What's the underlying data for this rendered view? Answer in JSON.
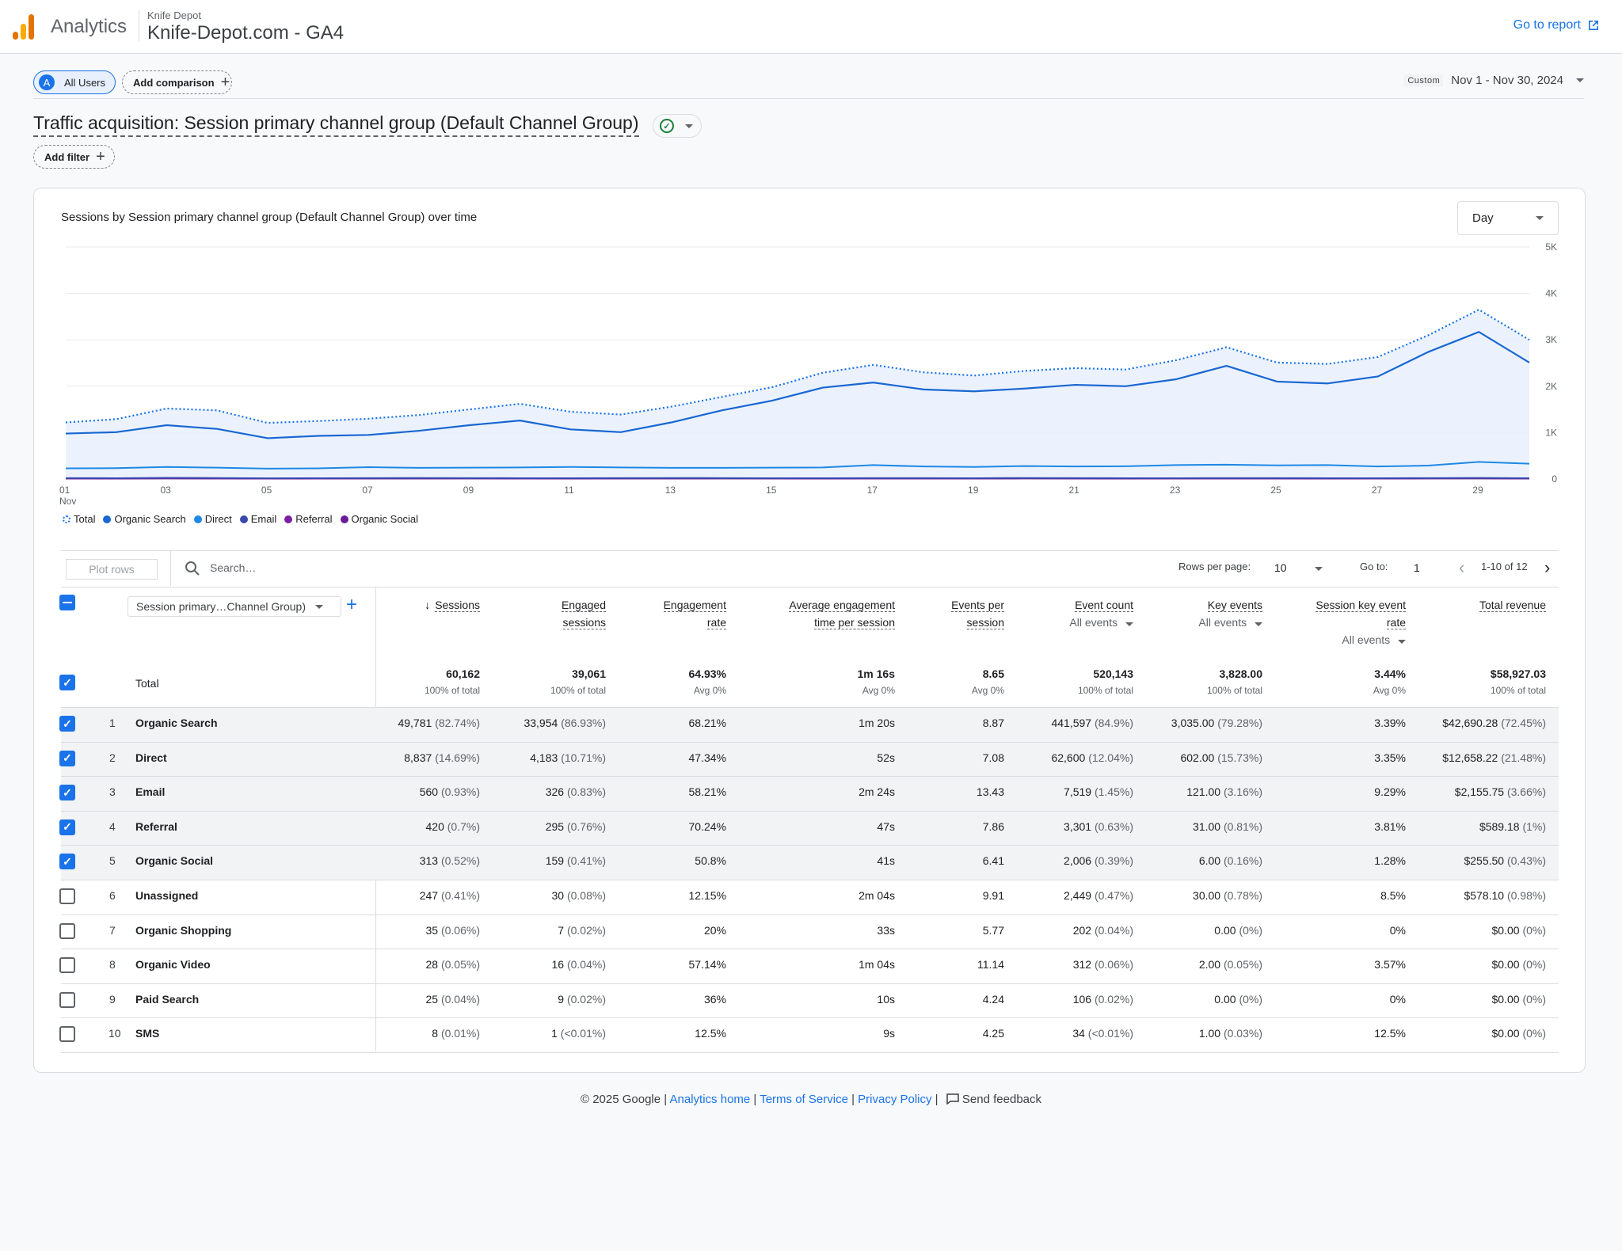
{
  "header": {
    "app_name": "Analytics",
    "account": "Knife Depot",
    "property": "Knife-Depot.com - GA4",
    "go_to_report": "Go to report"
  },
  "controls": {
    "segment_avatar": "A",
    "segment_label": "All Users",
    "add_comparison": "Add comparison",
    "date_tag": "Custom",
    "date_range": "Nov 1 - Nov 30, 2024",
    "report_title": "Traffic acquisition: Session primary channel group (Default Channel Group)",
    "add_filter": "Add filter"
  },
  "chart_panel": {
    "title": "Sessions by Session primary channel group (Default Channel Group) over time",
    "interval": "Day"
  },
  "chart_data": {
    "type": "line",
    "title": "Sessions by Session primary channel group (Default Channel Group) over time",
    "x": [
      1,
      2,
      3,
      4,
      5,
      6,
      7,
      8,
      9,
      10,
      11,
      12,
      13,
      14,
      15,
      16,
      17,
      18,
      19,
      20,
      21,
      22,
      23,
      24,
      25,
      26,
      27,
      28,
      29,
      30
    ],
    "x_tick_labels": [
      "01",
      "03",
      "05",
      "07",
      "09",
      "11",
      "13",
      "15",
      "17",
      "19",
      "21",
      "23",
      "25",
      "27",
      "29"
    ],
    "x_tick_values": [
      1,
      3,
      5,
      7,
      9,
      11,
      13,
      15,
      17,
      19,
      21,
      23,
      25,
      27,
      29
    ],
    "x_month_label": "Nov",
    "y_tick_labels": [
      "0",
      "1K",
      "2K",
      "3K",
      "4K",
      "5K"
    ],
    "ylim": [
      0,
      5000
    ],
    "grid": true,
    "legend_position": "bottom-left",
    "series": [
      {
        "name": "Total",
        "color": "#1a73e8",
        "style": "dotted",
        "values": [
          1220,
          1290,
          1520,
          1480,
          1210,
          1250,
          1300,
          1380,
          1500,
          1620,
          1450,
          1390,
          1560,
          1770,
          1980,
          2290,
          2460,
          2300,
          2230,
          2330,
          2390,
          2360,
          2560,
          2840,
          2510,
          2480,
          2630,
          3100,
          3650,
          3000
        ]
      },
      {
        "name": "Organic Search",
        "color": "#1967d2",
        "style": "solid",
        "area": true,
        "values": [
          980,
          1010,
          1160,
          1080,
          880,
          930,
          950,
          1040,
          1160,
          1260,
          1070,
          1010,
          1220,
          1480,
          1690,
          1970,
          2080,
          1930,
          1890,
          1950,
          2030,
          2000,
          2150,
          2440,
          2100,
          2060,
          2210,
          2740,
          3170,
          2510
        ]
      },
      {
        "name": "Direct",
        "color": "#1e88e5",
        "style": "solid",
        "values": [
          230,
          235,
          260,
          245,
          225,
          230,
          255,
          240,
          245,
          250,
          260,
          250,
          240,
          240,
          245,
          250,
          300,
          270,
          260,
          280,
          270,
          275,
          300,
          310,
          295,
          300,
          270,
          290,
          370,
          330
        ]
      },
      {
        "name": "Email",
        "color": "#3949ab",
        "style": "solid",
        "values": [
          20,
          18,
          25,
          22,
          15,
          18,
          20,
          22,
          20,
          18,
          17,
          19,
          21,
          20,
          18,
          17,
          19,
          20,
          18,
          22,
          19,
          18,
          17,
          20,
          19,
          18,
          17,
          20,
          23,
          16
        ]
      },
      {
        "name": "Referral",
        "color": "#7b1fa2",
        "style": "solid",
        "values": [
          14,
          12,
          16,
          15,
          11,
          13,
          14,
          15,
          14,
          13,
          12,
          14,
          16,
          15,
          14,
          13,
          15,
          14,
          13,
          16,
          15,
          14,
          13,
          15,
          14,
          13,
          12,
          15,
          16,
          13
        ]
      },
      {
        "name": "Organic Social",
        "color": "#6a1b9a",
        "style": "solid",
        "values": [
          10,
          9,
          12,
          11,
          8,
          10,
          11,
          10,
          12,
          11,
          9,
          10,
          11,
          12,
          10,
          9,
          11,
          10,
          11,
          12,
          10,
          9,
          10,
          11,
          10,
          9,
          11,
          12,
          13,
          10
        ]
      }
    ]
  },
  "toolbar": {
    "plot_rows": "Plot rows",
    "search_placeholder": "Search…",
    "rows_per_page_label": "Rows per page:",
    "rows_per_page": "10",
    "goto_label": "Go to:",
    "goto_value": "1",
    "pagination": "1-10 of 12"
  },
  "table": {
    "dimension": "Session primary…Channel Group)",
    "total_label": "Total",
    "columns": [
      {
        "l1": "Sessions",
        "l2": "",
        "sub": "",
        "sort": true
      },
      {
        "l1": "Engaged",
        "l2": "sessions",
        "sub": ""
      },
      {
        "l1": "Engagement",
        "l2": "rate",
        "sub": ""
      },
      {
        "l1": "Average engagement",
        "l2": "time per session",
        "sub": ""
      },
      {
        "l1": "Events per",
        "l2": "session",
        "sub": ""
      },
      {
        "l1": "Event count",
        "l2": "",
        "sub": "All events"
      },
      {
        "l1": "Key events",
        "l2": "",
        "sub": "All events"
      },
      {
        "l1": "Session key event",
        "l2": "rate",
        "sub": "All events"
      },
      {
        "l1": "Total revenue",
        "l2": "",
        "sub": ""
      }
    ],
    "totals": [
      {
        "v": "60,162",
        "s": "100% of total"
      },
      {
        "v": "39,061",
        "s": "100% of total"
      },
      {
        "v": "64.93%",
        "s": "Avg 0%"
      },
      {
        "v": "1m 16s",
        "s": "Avg 0%"
      },
      {
        "v": "8.65",
        "s": "Avg 0%"
      },
      {
        "v": "520,143",
        "s": "100% of total"
      },
      {
        "v": "3,828.00",
        "s": "100% of total"
      },
      {
        "v": "3.44%",
        "s": "Avg 0%"
      },
      {
        "v": "$58,927.03",
        "s": "100% of total"
      }
    ],
    "rows": [
      {
        "rank": "1",
        "name": "Organic Search",
        "checked": true,
        "cells": [
          [
            "49,781",
            "(82.74%)"
          ],
          [
            "33,954",
            "(86.93%)"
          ],
          [
            "68.21%",
            ""
          ],
          [
            "1m 20s",
            ""
          ],
          [
            "8.87",
            ""
          ],
          [
            "441,597",
            "(84.9%)"
          ],
          [
            "3,035.00",
            "(79.28%)"
          ],
          [
            "3.39%",
            ""
          ],
          [
            "$42,690.28",
            "(72.45%)"
          ]
        ]
      },
      {
        "rank": "2",
        "name": "Direct",
        "checked": true,
        "cells": [
          [
            "8,837",
            "(14.69%)"
          ],
          [
            "4,183",
            "(10.71%)"
          ],
          [
            "47.34%",
            ""
          ],
          [
            "52s",
            ""
          ],
          [
            "7.08",
            ""
          ],
          [
            "62,600",
            "(12.04%)"
          ],
          [
            "602.00",
            "(15.73%)"
          ],
          [
            "3.35%",
            ""
          ],
          [
            "$12,658.22",
            "(21.48%)"
          ]
        ]
      },
      {
        "rank": "3",
        "name": "Email",
        "checked": true,
        "cells": [
          [
            "560",
            "(0.93%)"
          ],
          [
            "326",
            "(0.83%)"
          ],
          [
            "58.21%",
            ""
          ],
          [
            "2m 24s",
            ""
          ],
          [
            "13.43",
            ""
          ],
          [
            "7,519",
            "(1.45%)"
          ],
          [
            "121.00",
            "(3.16%)"
          ],
          [
            "9.29%",
            ""
          ],
          [
            "$2,155.75",
            "(3.66%)"
          ]
        ]
      },
      {
        "rank": "4",
        "name": "Referral",
        "checked": true,
        "cells": [
          [
            "420",
            "(0.7%)"
          ],
          [
            "295",
            "(0.76%)"
          ],
          [
            "70.24%",
            ""
          ],
          [
            "47s",
            ""
          ],
          [
            "7.86",
            ""
          ],
          [
            "3,301",
            "(0.63%)"
          ],
          [
            "31.00",
            "(0.81%)"
          ],
          [
            "3.81%",
            ""
          ],
          [
            "$589.18",
            "(1%)"
          ]
        ]
      },
      {
        "rank": "5",
        "name": "Organic Social",
        "checked": true,
        "cells": [
          [
            "313",
            "(0.52%)"
          ],
          [
            "159",
            "(0.41%)"
          ],
          [
            "50.8%",
            ""
          ],
          [
            "41s",
            ""
          ],
          [
            "6.41",
            ""
          ],
          [
            "2,006",
            "(0.39%)"
          ],
          [
            "6.00",
            "(0.16%)"
          ],
          [
            "1.28%",
            ""
          ],
          [
            "$255.50",
            "(0.43%)"
          ]
        ]
      },
      {
        "rank": "6",
        "name": "Unassigned",
        "checked": false,
        "cells": [
          [
            "247",
            "(0.41%)"
          ],
          [
            "30",
            "(0.08%)"
          ],
          [
            "12.15%",
            ""
          ],
          [
            "2m 04s",
            ""
          ],
          [
            "9.91",
            ""
          ],
          [
            "2,449",
            "(0.47%)"
          ],
          [
            "30.00",
            "(0.78%)"
          ],
          [
            "8.5%",
            ""
          ],
          [
            "$578.10",
            "(0.98%)"
          ]
        ]
      },
      {
        "rank": "7",
        "name": "Organic Shopping",
        "checked": false,
        "cells": [
          [
            "35",
            "(0.06%)"
          ],
          [
            "7",
            "(0.02%)"
          ],
          [
            "20%",
            ""
          ],
          [
            "33s",
            ""
          ],
          [
            "5.77",
            ""
          ],
          [
            "202",
            "(0.04%)"
          ],
          [
            "0.00",
            "(0%)"
          ],
          [
            "0%",
            ""
          ],
          [
            "$0.00",
            "(0%)"
          ]
        ]
      },
      {
        "rank": "8",
        "name": "Organic Video",
        "checked": false,
        "cells": [
          [
            "28",
            "(0.05%)"
          ],
          [
            "16",
            "(0.04%)"
          ],
          [
            "57.14%",
            ""
          ],
          [
            "1m 04s",
            ""
          ],
          [
            "11.14",
            ""
          ],
          [
            "312",
            "(0.06%)"
          ],
          [
            "2.00",
            "(0.05%)"
          ],
          [
            "3.57%",
            ""
          ],
          [
            "$0.00",
            "(0%)"
          ]
        ]
      },
      {
        "rank": "9",
        "name": "Paid Search",
        "checked": false,
        "cells": [
          [
            "25",
            "(0.04%)"
          ],
          [
            "9",
            "(0.02%)"
          ],
          [
            "36%",
            ""
          ],
          [
            "10s",
            ""
          ],
          [
            "4.24",
            ""
          ],
          [
            "106",
            "(0.02%)"
          ],
          [
            "0.00",
            "(0%)"
          ],
          [
            "0%",
            ""
          ],
          [
            "$0.00",
            "(0%)"
          ]
        ]
      },
      {
        "rank": "10",
        "name": "SMS",
        "checked": false,
        "cells": [
          [
            "8",
            "(0.01%)"
          ],
          [
            "1",
            "(<0.01%)"
          ],
          [
            "12.5%",
            ""
          ],
          [
            "9s",
            ""
          ],
          [
            "4.25",
            ""
          ],
          [
            "34",
            "(<0.01%)"
          ],
          [
            "1.00",
            "(0.03%)"
          ],
          [
            "12.5%",
            ""
          ],
          [
            "$0.00",
            "(0%)"
          ]
        ]
      }
    ]
  },
  "footer": {
    "copyright": "© 2025 Google |",
    "analytics_home": "Analytics home",
    "terms": "Terms of Service",
    "privacy": "Privacy Policy",
    "feedback": "Send feedback"
  },
  "icons": {
    "logo": "analytics-logo-icon",
    "external": "open-in-new-icon",
    "search": "search-icon",
    "feedback": "feedback-icon"
  }
}
